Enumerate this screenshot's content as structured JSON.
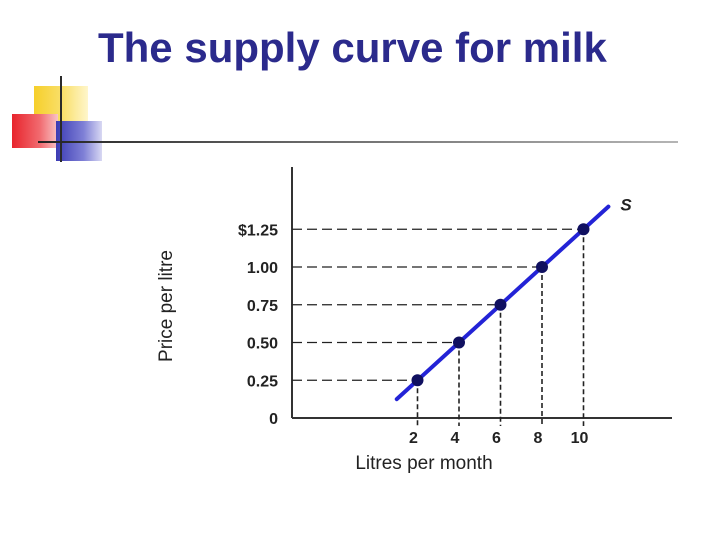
{
  "slide": {
    "title": "The supply curve for milk"
  },
  "chart_data": {
    "type": "line",
    "xlabel": "Litres per month",
    "ylabel": "Price per litre",
    "x_tick_labels": [
      "2",
      "4",
      "6",
      "8",
      "10"
    ],
    "y_tick_labels": [
      "0",
      "0.25",
      "0.50",
      "0.75",
      "1.00",
      "$1.25"
    ],
    "y_ticks": [
      0,
      0.25,
      0.5,
      0.75,
      1.0,
      1.25
    ],
    "xlim": [
      0,
      10
    ],
    "ylim": [
      0,
      1.25
    ],
    "grid": false,
    "series": [
      {
        "name": "S",
        "color": "#2323d6",
        "x": [
          2,
          4,
          6,
          8,
          10
        ],
        "y": [
          0.25,
          0.5,
          0.75,
          1.0,
          1.25
        ]
      }
    ],
    "line_extent": {
      "x": [
        1,
        11.2
      ],
      "y": [
        0.125,
        1.4
      ]
    }
  }
}
